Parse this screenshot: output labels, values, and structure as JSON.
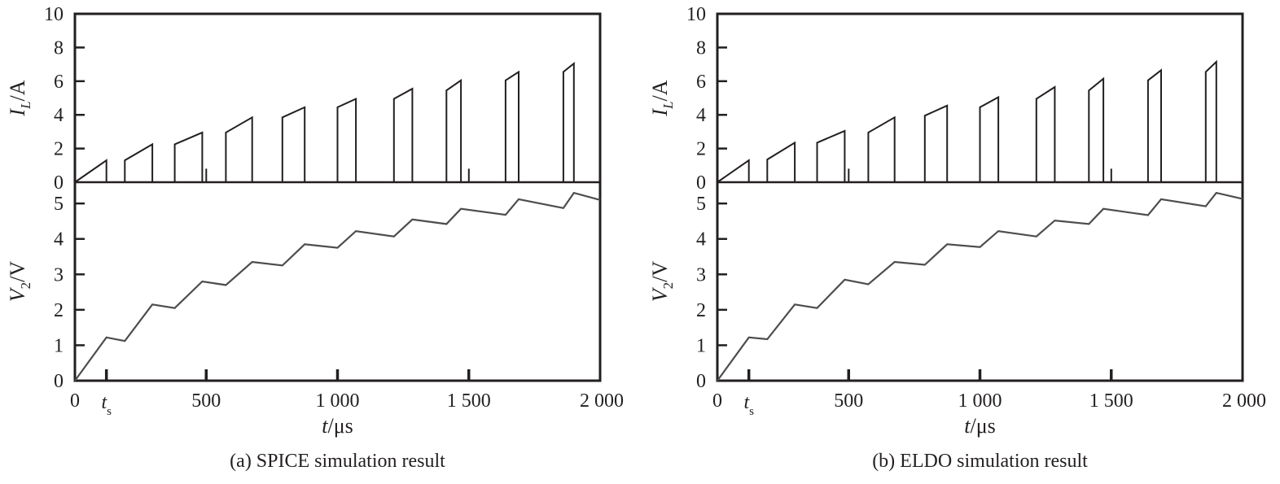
{
  "chart_data": [
    {
      "type": "line",
      "caption": "(a) SPICE simulation result",
      "x_axis": {
        "label_var": "t",
        "label_unit": "/μs",
        "lim": [
          0,
          2000
        ],
        "ticks": [
          0,
          500,
          1000,
          1500,
          2000
        ],
        "tick_labels": [
          "0",
          "500",
          "1 000",
          "1 500",
          "2 000"
        ],
        "extra_tick": {
          "value": 120,
          "label_main": "t",
          "label_sub": "s"
        }
      },
      "panels": [
        {
          "id": "inductor-current",
          "ylabel_main": "I",
          "ylabel_sub": "L",
          "ylabel_unit": "/A",
          "ylim": [
            0,
            10
          ],
          "yticks": [
            0,
            2,
            4,
            6,
            8,
            10
          ],
          "ytick_labels": [
            "0",
            "2",
            "4",
            "6",
            "8",
            "10"
          ],
          "series": [
            {
              "x": [
                0,
                120,
                120,
                190,
                190,
                295,
                295,
                380,
                380,
                485,
                485,
                500,
                500,
                500,
                500,
                575,
                575,
                675,
                675,
                790,
                790,
                875,
                875,
                1000,
                1000,
                1070,
                1070,
                1215,
                1215,
                1285,
                1285,
                1415,
                1415,
                1470,
                1470,
                1500,
                1500,
                1500,
                1500,
                1640,
                1640,
                1690,
                1690,
                1860,
                1860,
                1900,
                1900,
                2000
              ],
              "y": [
                0,
                1.3,
                0,
                0,
                1.3,
                2.25,
                0,
                0,
                2.25,
                2.95,
                0,
                0,
                0.8,
                0,
                0,
                0,
                2.95,
                3.85,
                0,
                0,
                3.85,
                4.45,
                0,
                0,
                4.45,
                4.95,
                0,
                0,
                4.95,
                5.55,
                0,
                0,
                5.45,
                6.05,
                0,
                0,
                0.8,
                0,
                0,
                0,
                6.05,
                6.55,
                0,
                0,
                6.55,
                7.05,
                0,
                0
              ]
            }
          ]
        },
        {
          "id": "output-voltage",
          "ylabel_main": "V",
          "ylabel_sub": "2",
          "ylabel_unit": "/V",
          "ylim": [
            0,
            5.6
          ],
          "yticks": [
            0,
            1,
            2,
            3,
            4,
            5
          ],
          "ytick_labels": [
            "0",
            "1",
            "2",
            "3",
            "4",
            "5"
          ],
          "series": [
            {
              "x": [
                0,
                120,
                190,
                295,
                380,
                485,
                575,
                675,
                790,
                875,
                1000,
                1070,
                1215,
                1285,
                1415,
                1470,
                1640,
                1690,
                1860,
                1900,
                2000
              ],
              "y": [
                0,
                1.22,
                1.12,
                2.15,
                2.05,
                2.8,
                2.7,
                3.35,
                3.25,
                3.85,
                3.75,
                4.22,
                4.07,
                4.55,
                4.42,
                4.85,
                4.68,
                5.12,
                4.87,
                5.3,
                5.1
              ]
            }
          ]
        }
      ]
    },
    {
      "type": "line",
      "caption": "(b) ELDO simulation result",
      "x_axis": {
        "label_var": "t",
        "label_unit": "/μs",
        "lim": [
          0,
          2000
        ],
        "ticks": [
          0,
          500,
          1000,
          1500,
          2000
        ],
        "tick_labels": [
          "0",
          "500",
          "1 000",
          "1 500",
          "2 000"
        ],
        "extra_tick": {
          "value": 120,
          "label_main": "t",
          "label_sub": "s"
        }
      },
      "panels": [
        {
          "id": "inductor-current",
          "ylabel_main": "I",
          "ylabel_sub": "L",
          "ylabel_unit": "/A",
          "ylim": [
            0,
            10
          ],
          "yticks": [
            0,
            2,
            4,
            6,
            8,
            10
          ],
          "ytick_labels": [
            "0",
            "2",
            "4",
            "6",
            "8",
            "10"
          ],
          "series": [
            {
              "x": [
                0,
                120,
                120,
                190,
                190,
                295,
                295,
                380,
                380,
                485,
                485,
                500,
                500,
                500,
                500,
                575,
                575,
                675,
                675,
                790,
                790,
                875,
                875,
                1000,
                1000,
                1070,
                1070,
                1215,
                1215,
                1285,
                1285,
                1415,
                1415,
                1470,
                1470,
                1500,
                1500,
                1500,
                1500,
                1640,
                1640,
                1690,
                1690,
                1860,
                1860,
                1900,
                1900,
                2000
              ],
              "y": [
                0,
                1.3,
                0,
                0,
                1.35,
                2.35,
                0,
                0,
                2.35,
                3.05,
                0,
                0,
                0.8,
                0,
                0,
                0,
                2.95,
                3.85,
                0,
                0,
                3.95,
                4.55,
                0,
                0,
                4.45,
                5.05,
                0,
                0,
                4.95,
                5.65,
                0,
                0,
                5.45,
                6.15,
                0,
                0,
                0.8,
                0,
                0,
                0,
                6.05,
                6.65,
                0,
                0,
                6.55,
                7.15,
                0,
                0
              ]
            }
          ]
        },
        {
          "id": "output-voltage",
          "ylabel_main": "V",
          "ylabel_sub": "2",
          "ylabel_unit": "/V",
          "ylim": [
            0,
            5.6
          ],
          "yticks": [
            0,
            1,
            2,
            3,
            4,
            5
          ],
          "ytick_labels": [
            "0",
            "1",
            "2",
            "3",
            "4",
            "5"
          ],
          "series": [
            {
              "x": [
                0,
                120,
                190,
                295,
                380,
                485,
                575,
                675,
                790,
                875,
                1000,
                1070,
                1215,
                1285,
                1415,
                1470,
                1640,
                1690,
                1860,
                1900,
                2000
              ],
              "y": [
                0,
                1.22,
                1.17,
                2.15,
                2.05,
                2.85,
                2.72,
                3.35,
                3.27,
                3.85,
                3.77,
                4.22,
                4.07,
                4.52,
                4.42,
                4.85,
                4.67,
                5.12,
                4.92,
                5.3,
                5.13
              ]
            }
          ]
        }
      ]
    }
  ],
  "colors": {
    "axis": "#231f20",
    "current_trace": "#231f20",
    "voltage_trace": "#4d4d4f",
    "background": "#ffffff"
  }
}
